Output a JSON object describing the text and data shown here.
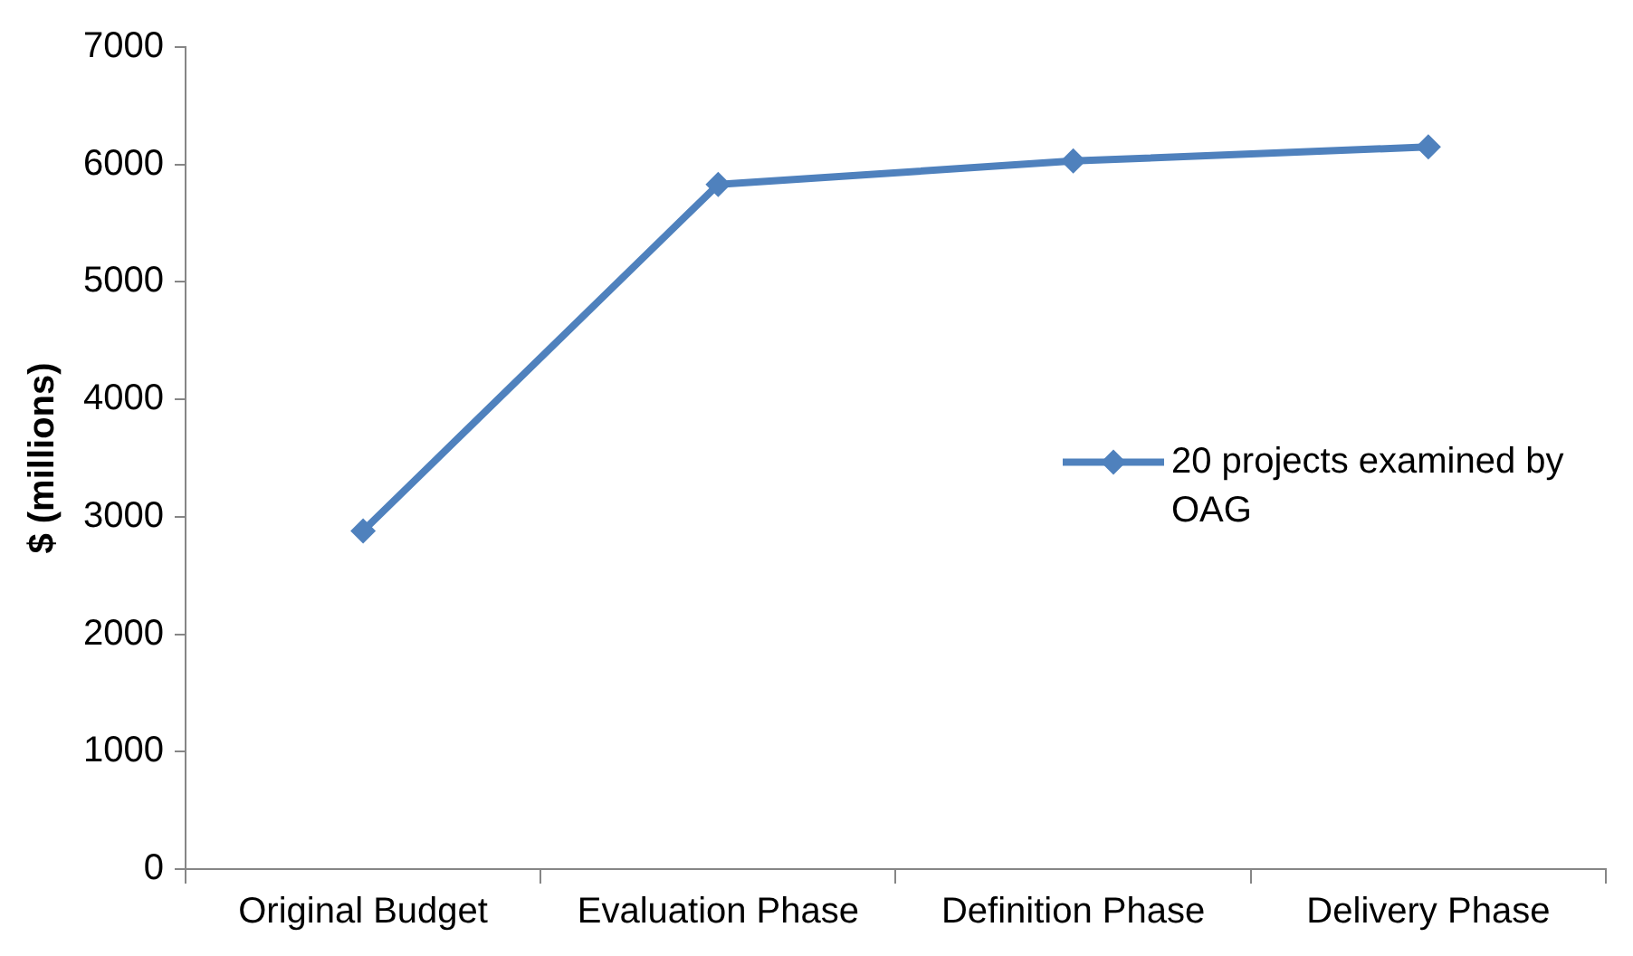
{
  "chart_data": {
    "type": "line",
    "ylabel": "$ (millions)",
    "categories": [
      "Original Budget",
      "Evaluation Phase",
      "Definition Phase",
      "Delivery Phase"
    ],
    "series": [
      {
        "name": "20 projects examined by OAG",
        "color": "#4f81bd",
        "values": [
          2880,
          5830,
          6030,
          6150
        ]
      }
    ],
    "ylim": [
      0,
      7000
    ],
    "yticks": [
      0,
      1000,
      2000,
      3000,
      4000,
      5000,
      6000,
      7000
    ],
    "legend": "right",
    "marker": "diamond",
    "line_style": "solid"
  }
}
